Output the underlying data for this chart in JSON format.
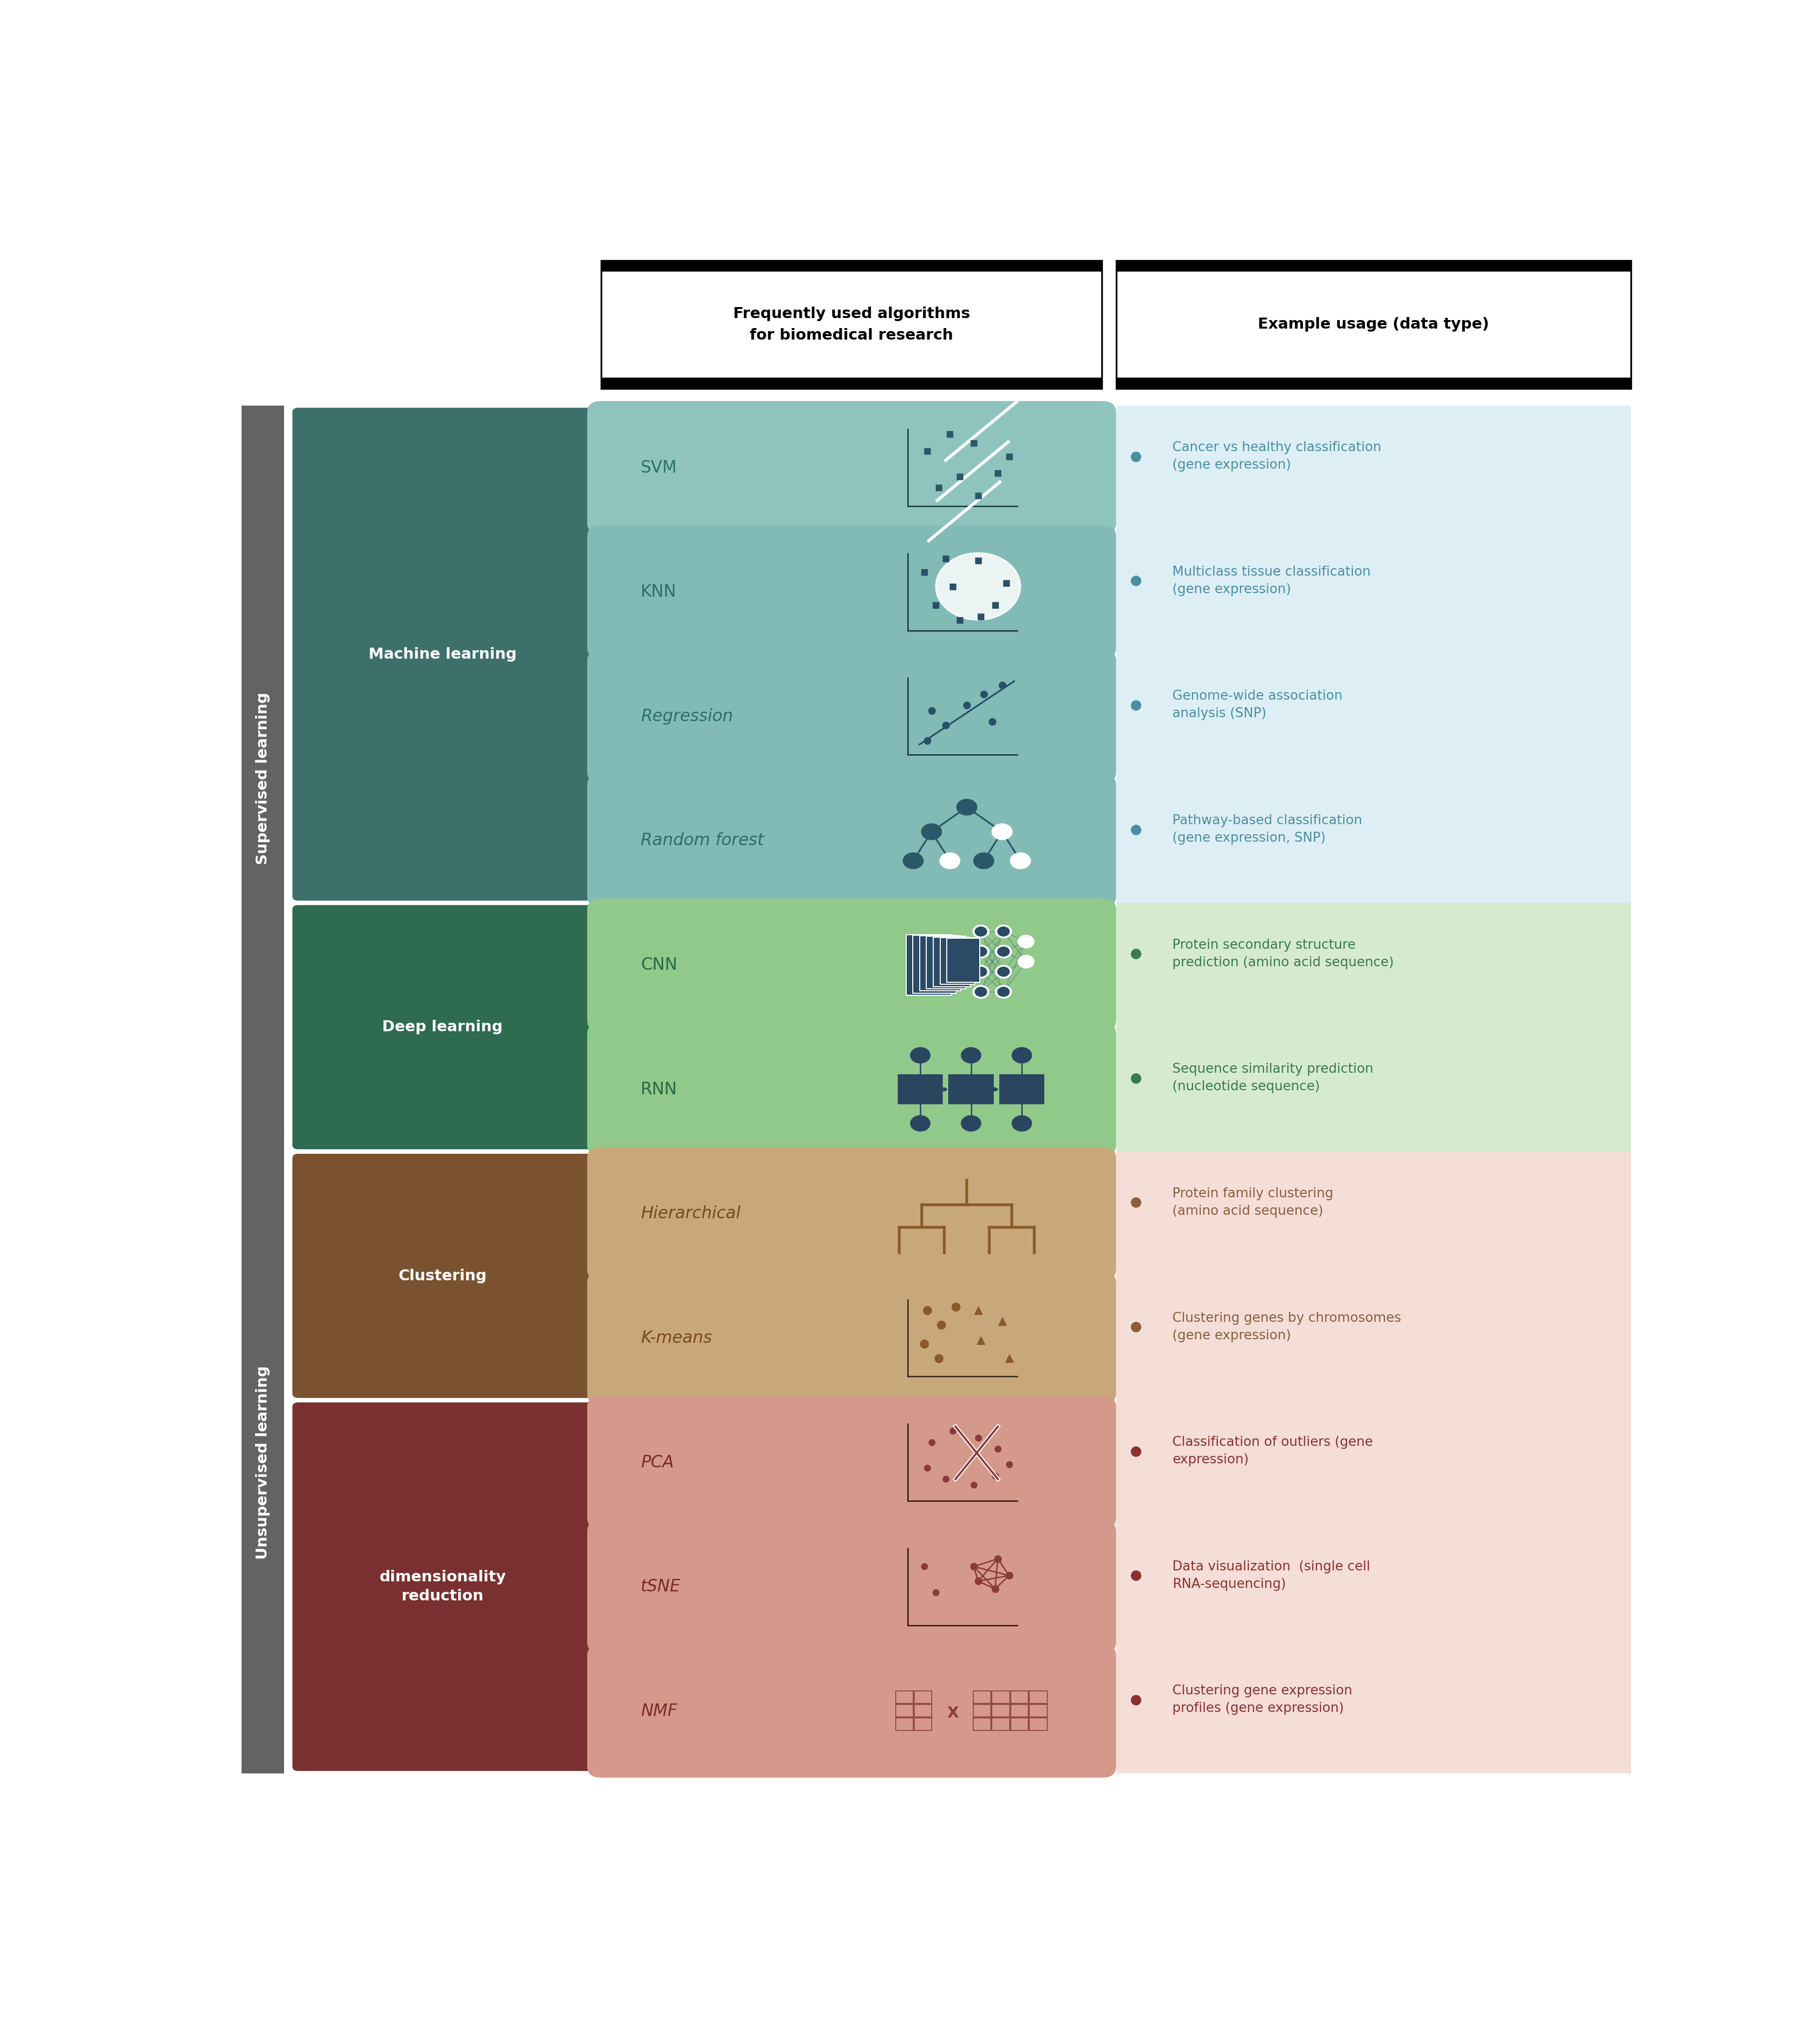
{
  "fig_width": 36.39,
  "fig_height": 40.59,
  "bg_color": "#ffffff",
  "header1_text": "Frequently used algorithms\nfor biomedical research",
  "header2_text": "Example usage (data type)",
  "supervised_bar_color": "#636363",
  "unsupervised_bar_color": "#636363",
  "supervised_text": "Supervised learning",
  "unsupervised_text": "Unsupervised learning",
  "ml_box_color": "#3d706a",
  "ml_text": "Machine learning",
  "dl_box_color": "#2e6b50",
  "dl_text": "Deep learning",
  "cl_box_color": "#7a5230",
  "cl_text": "Clustering",
  "dr_box_color": "#7a3030",
  "dr_text": "dimensionality\nreduction",
  "supervised_bg": "#ddeef5",
  "dl_bg": "#d5eacf",
  "unsupervised_bg": "#f5ddd8",
  "algo_colors": {
    "SVM": "#8fc4be",
    "KNN": "#82bbb6",
    "Regression": "#82bbb6",
    "Random forest": "#82bbb6",
    "CNN": "#90c98a",
    "RNN": "#90c98a",
    "Hierarchical": "#c8a87a",
    "K-means": "#c8a87a",
    "PCA": "#d4998a",
    "tSNE": "#d4998a",
    "NMF": "#d4998a"
  },
  "algo_text_colors": {
    "SVM": "#2a7068",
    "KNN": "#2a7068",
    "Regression": "#2a7068",
    "Random forest": "#2a7068",
    "CNN": "#2a6845",
    "RNN": "#2a6845",
    "Hierarchical": "#7a4a1a",
    "K-means": "#7a4a1a",
    "PCA": "#7a2a2a",
    "tSNE": "#7a2a2a",
    "NMF": "#7a2a2a"
  },
  "algo_items": [
    {
      "name": "SVM",
      "row": 0
    },
    {
      "name": "KNN",
      "row": 1
    },
    {
      "name": "Regression",
      "row": 2
    },
    {
      "name": "Random forest",
      "row": 3
    },
    {
      "name": "CNN",
      "row": 4
    },
    {
      "name": "RNN",
      "row": 5
    },
    {
      "name": "Hierarchical",
      "row": 6
    },
    {
      "name": "K-means",
      "row": 7
    },
    {
      "name": "PCA",
      "row": 8
    },
    {
      "name": "tSNE",
      "row": 9
    },
    {
      "name": "NMF",
      "row": 10
    }
  ],
  "example_items": [
    {
      "row": 0,
      "text": "Cancer vs healthy classification\n(gene expression)",
      "dot_color": "#4a8fa0"
    },
    {
      "row": 1,
      "text": "Multiclass tissue classification\n(gene expression)",
      "dot_color": "#4a8fa0"
    },
    {
      "row": 2,
      "text": "Genome-wide association\nanalysis (SNP)",
      "dot_color": "#4a8fa0"
    },
    {
      "row": 3,
      "text": "Pathway-based classification\n(gene expression, SNP)",
      "dot_color": "#4a8fa0"
    },
    {
      "row": 4,
      "text": "Protein secondary structure\nprediction (amino acid sequence)",
      "dot_color": "#3a7a50"
    },
    {
      "row": 5,
      "text": "Sequence similarity prediction\n(nucleotide sequence)",
      "dot_color": "#3a7a50"
    },
    {
      "row": 6,
      "text": "Protein family clustering\n(amino acid sequence)",
      "dot_color": "#8b5e3c"
    },
    {
      "row": 7,
      "text": "Clustering genes by chromosomes\n(gene expression)",
      "dot_color": "#8b5e3c"
    },
    {
      "row": 8,
      "text": "Classification of outliers (gene\nexpression)",
      "dot_color": "#8b3030"
    },
    {
      "row": 9,
      "text": "Data visualization  (single cell\nRNA-sequencing)",
      "dot_color": "#8b3030"
    },
    {
      "row": 10,
      "text": "Clustering gene expression\nprofiles (gene expression)",
      "dot_color": "#8b3030"
    }
  ]
}
